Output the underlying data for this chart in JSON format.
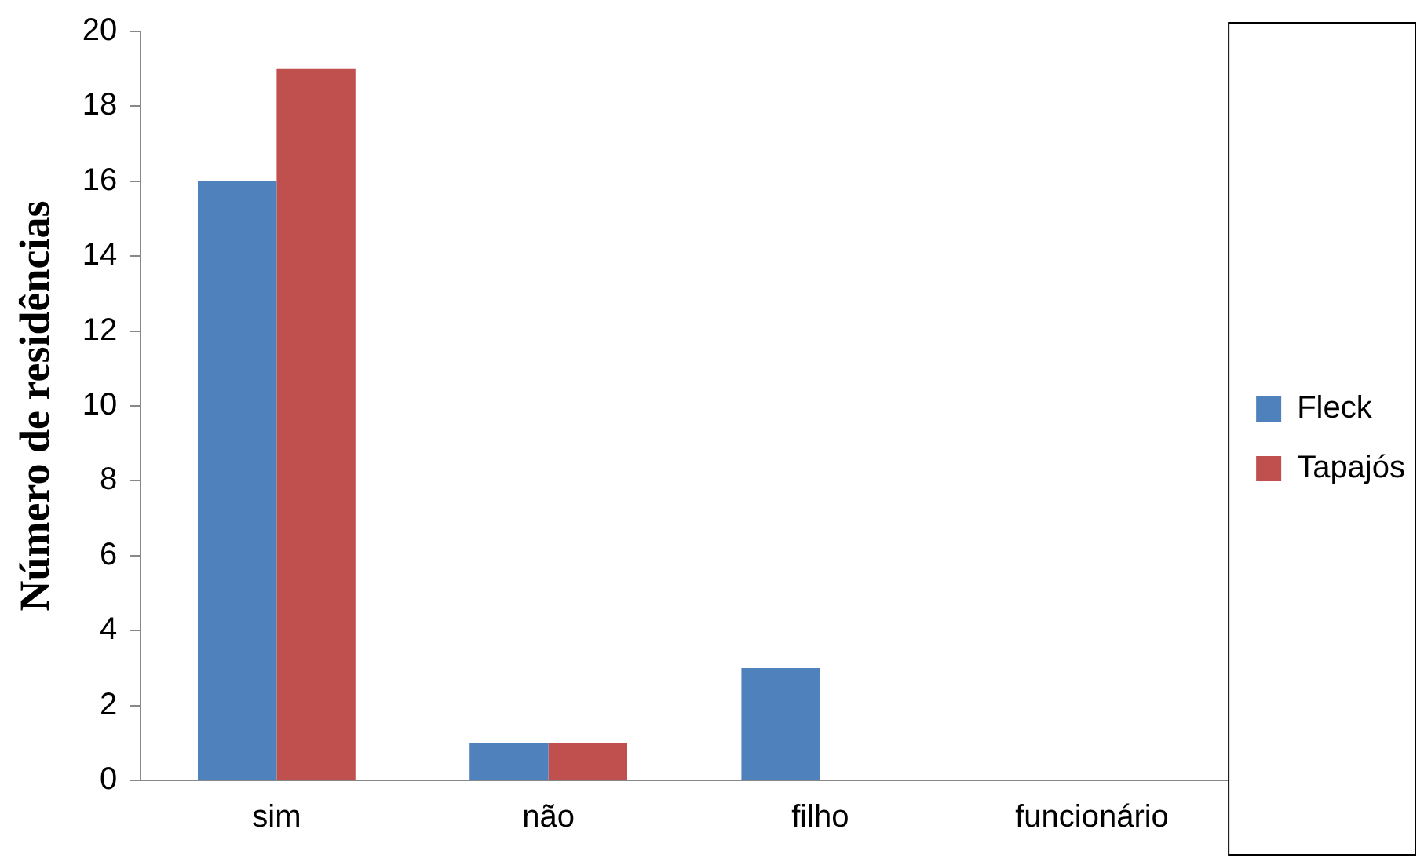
{
  "chart_data": {
    "type": "bar",
    "ylabel": "Número de residências",
    "categories": [
      "sim",
      "não",
      "filho",
      "funcionário"
    ],
    "series": [
      {
        "name": "Fleck",
        "color": "#4f81bd",
        "values": [
          16,
          1,
          3,
          0
        ]
      },
      {
        "name": "Tapajós",
        "color": "#c0504d",
        "values": [
          19,
          1,
          0,
          0
        ]
      }
    ],
    "ylim": [
      0,
      20
    ],
    "yticks": [
      0,
      2,
      4,
      6,
      8,
      10,
      12,
      14,
      16,
      18,
      20
    ],
    "grid": false,
    "legend": "right"
  }
}
